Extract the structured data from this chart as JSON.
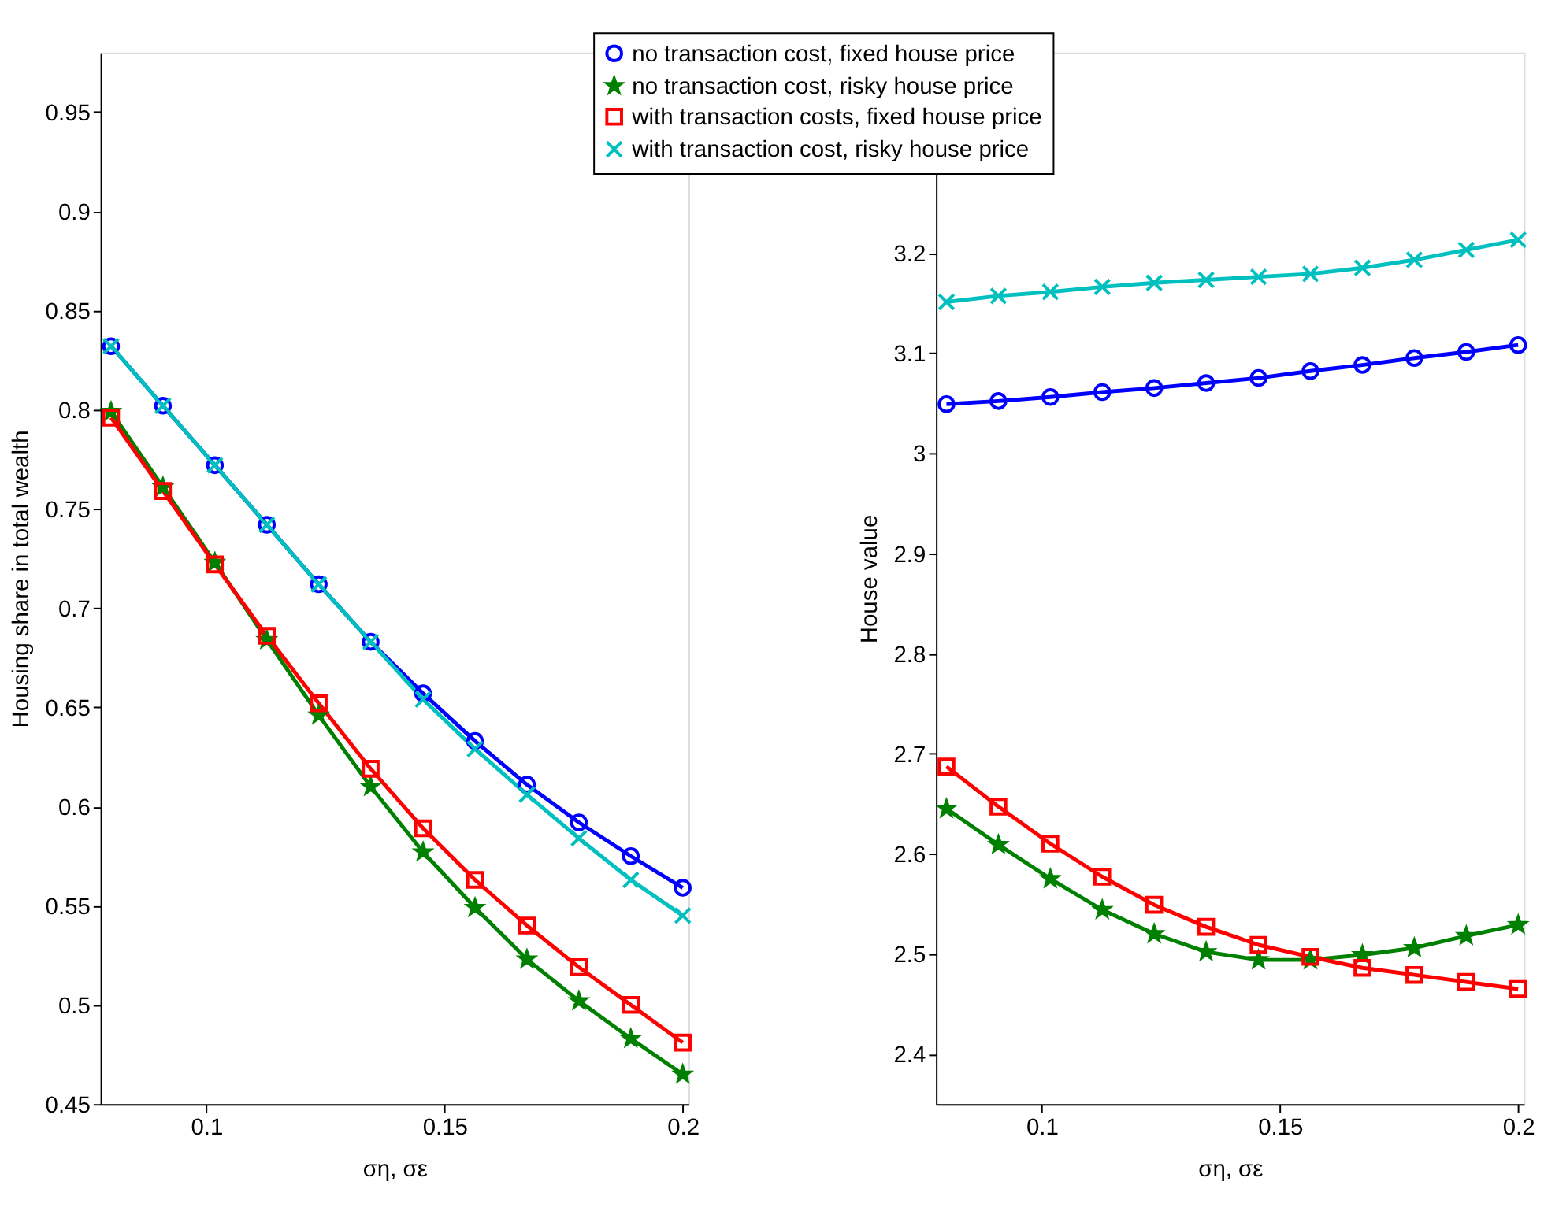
{
  "chart_data": [
    {
      "type": "line",
      "xlabel": "ση,   σε",
      "ylabel": "Housing share in total wealth",
      "legend": "top",
      "x": [
        0.08,
        0.0909,
        0.1018,
        0.1127,
        0.1236,
        0.1345,
        0.1455,
        0.1564,
        0.1673,
        0.1782,
        0.1891,
        0.2
      ],
      "xlim": [
        0.0778,
        0.2012
      ],
      "xticks": [
        0.1,
        0.15,
        0.2
      ],
      "ylim": [
        0.45,
        0.98
      ],
      "yticks": [
        0.45,
        0.5,
        0.55,
        0.6,
        0.65,
        0.7,
        0.75,
        0.8,
        0.85,
        0.9,
        0.95
      ],
      "series": [
        {
          "name": "no transaction cost, fixed house price",
          "color": "#0000ff",
          "marker": "circle",
          "values": [
            0.832,
            0.802,
            0.772,
            0.742,
            0.712,
            0.683,
            0.657,
            0.633,
            0.611,
            0.592,
            0.575,
            0.559
          ]
        },
        {
          "name": "no transaction cost, risky house price",
          "color": "#008000",
          "marker": "star",
          "values": [
            0.799,
            0.761,
            0.723,
            0.684,
            0.646,
            0.61,
            0.577,
            0.549,
            0.523,
            0.502,
            0.483,
            0.465
          ]
        },
        {
          "name": "with transaction costs, fixed house price",
          "color": "#ff0000",
          "marker": "square",
          "values": [
            0.796,
            0.759,
            0.722,
            0.686,
            0.652,
            0.619,
            0.589,
            0.563,
            0.54,
            0.519,
            0.5,
            0.481
          ]
        },
        {
          "name": "with transaction cost, risky house price",
          "color": "#00bfbf",
          "marker": "cross",
          "values": [
            0.832,
            0.802,
            0.772,
            0.742,
            0.712,
            0.683,
            0.654,
            0.629,
            0.606,
            0.584,
            0.563,
            0.545
          ]
        }
      ]
    },
    {
      "type": "line",
      "xlabel": "ση,   σε",
      "ylabel": "House value",
      "legend": "top",
      "x": [
        0.08,
        0.0909,
        0.1018,
        0.1127,
        0.1236,
        0.1345,
        0.1455,
        0.1564,
        0.1673,
        0.1782,
        0.1891,
        0.2
      ],
      "xlim": [
        0.0778,
        0.2012
      ],
      "xticks": [
        0.1,
        0.15,
        0.2
      ],
      "ylim": [
        2.35,
        3.4
      ],
      "yticks": [
        2.4,
        2.5,
        2.6,
        2.7,
        2.8,
        2.9,
        3,
        3.1,
        3.2,
        {
          "value": 3.3,
          "label": null
        }
      ],
      "series": [
        {
          "name": "no transaction cost, fixed house price",
          "color": "#0000ff",
          "marker": "circle",
          "values": [
            3.049,
            3.052,
            3.056,
            3.061,
            3.065,
            3.07,
            3.075,
            3.082,
            3.088,
            3.095,
            3.101,
            3.108
          ]
        },
        {
          "name": "no transaction cost, risky house price",
          "color": "#008000",
          "marker": "star",
          "values": [
            2.645,
            2.609,
            2.575,
            2.544,
            2.52,
            2.502,
            2.494,
            2.494,
            2.499,
            2.506,
            2.518,
            2.529
          ]
        },
        {
          "name": "with transaction costs, fixed house price",
          "color": "#ff0000",
          "marker": "square",
          "values": [
            2.687,
            2.647,
            2.61,
            2.577,
            2.549,
            2.527,
            2.509,
            2.497,
            2.486,
            2.479,
            2.472,
            2.465
          ]
        },
        {
          "name": "with transaction cost, risky house price",
          "color": "#00bfbf",
          "marker": "cross",
          "values": [
            3.151,
            3.157,
            3.161,
            3.166,
            3.17,
            3.173,
            3.176,
            3.179,
            3.185,
            3.193,
            3.203,
            3.213
          ]
        }
      ]
    }
  ]
}
